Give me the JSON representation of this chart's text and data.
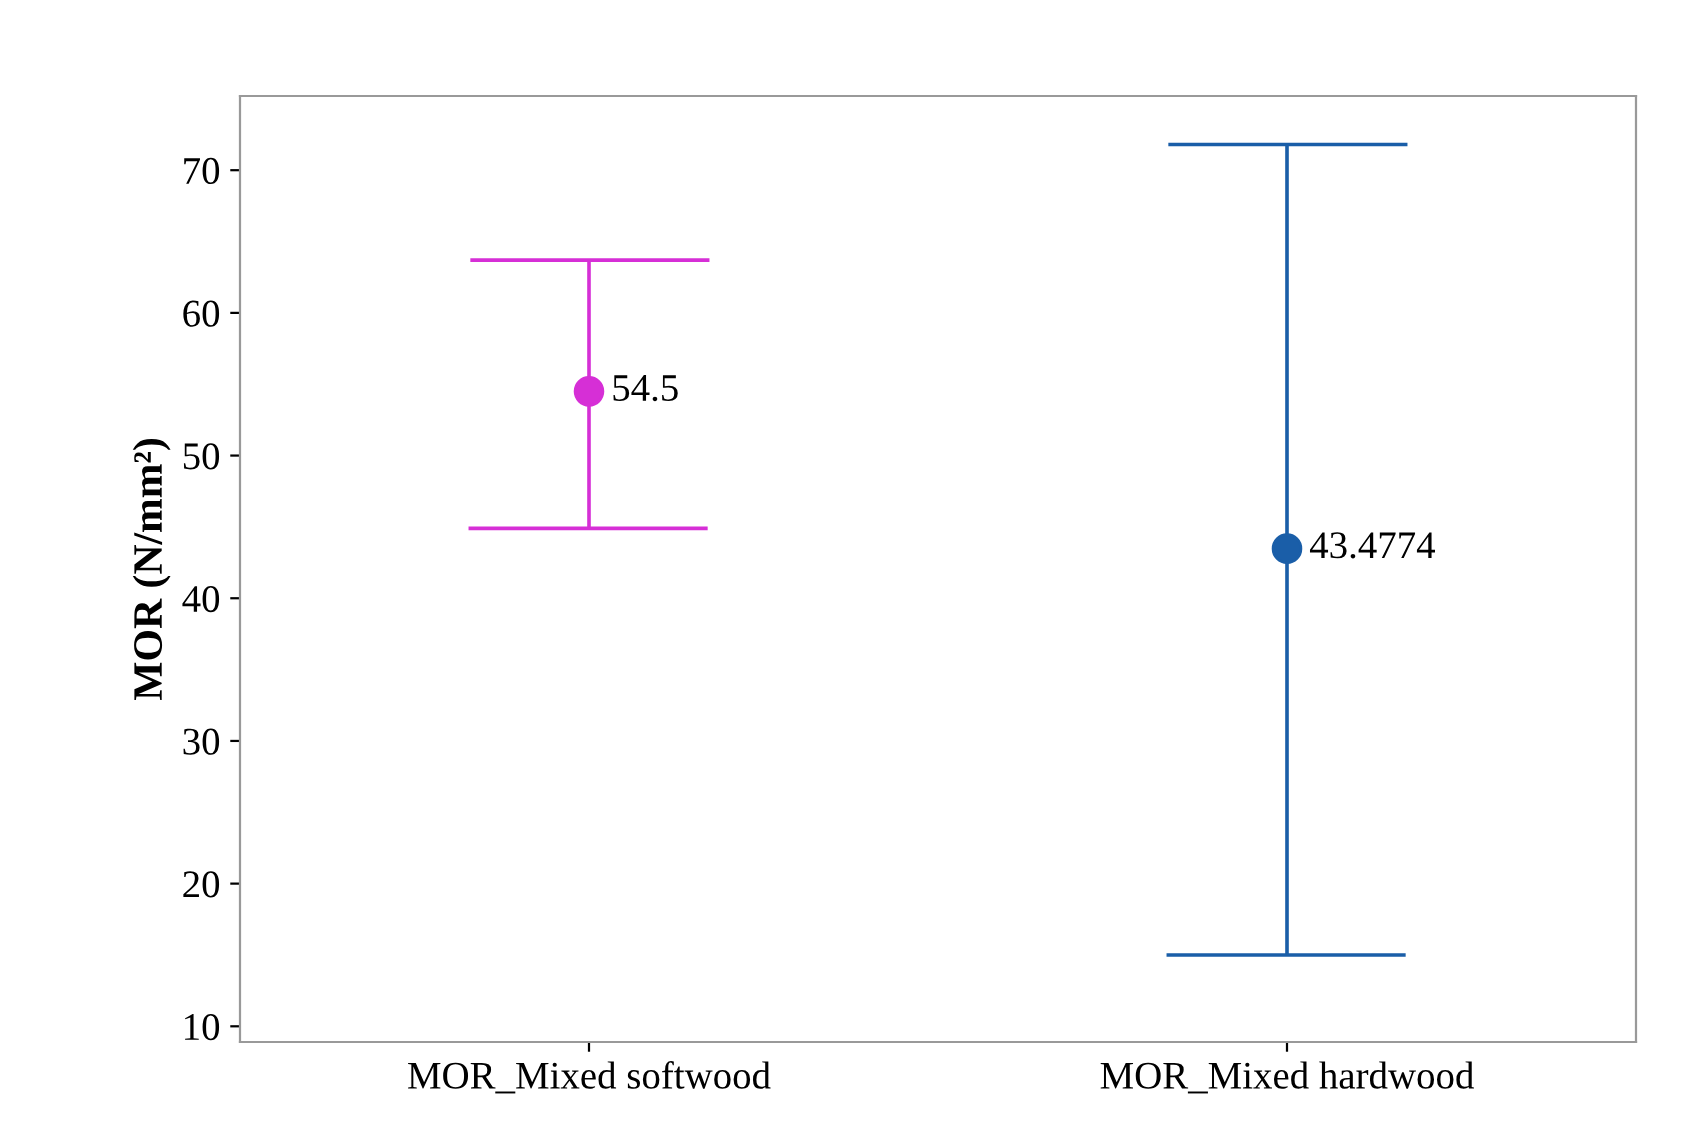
{
  "chart_data": {
    "type": "scatter",
    "ylabel": "MOR (N/mm²)",
    "categories": [
      "MOR_Mixed softwood",
      "MOR_Mixed hardwood"
    ],
    "values": [
      54.5,
      43.4774
    ],
    "errors": [
      [
        44.9,
        63.7
      ],
      [
        15.0,
        71.8
      ]
    ],
    "colors": [
      "#d62fd6",
      "#1a5ea8"
    ],
    "ylim": [
      8.9,
      75.2
    ],
    "yticks": [
      10,
      20,
      30,
      40,
      50,
      60,
      70
    ],
    "marker": "circle",
    "data_labels": true,
    "grid": false,
    "legend": false
  }
}
